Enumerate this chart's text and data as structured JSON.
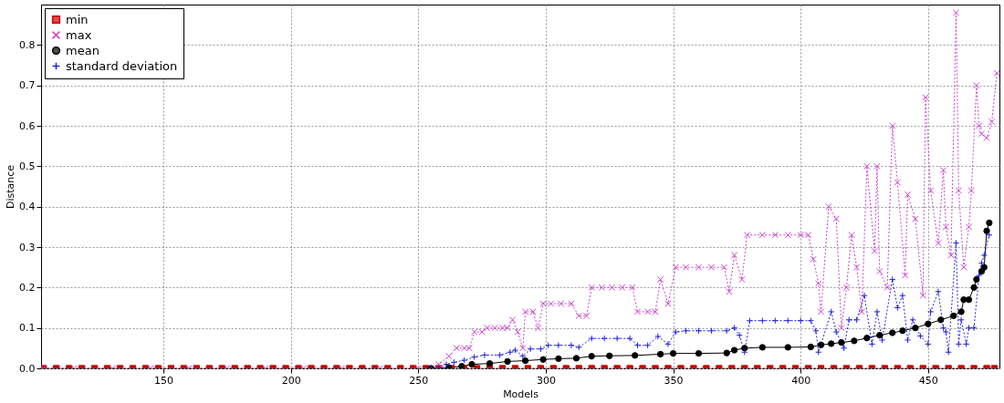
{
  "chart_data": {
    "type": "line",
    "xlabel": "Models",
    "ylabel": "Distance",
    "xlim": [
      102,
      478
    ],
    "xticks": [
      150,
      200,
      250,
      300,
      350,
      400,
      450
    ],
    "ylim": [
      0,
      0.9
    ],
    "yticks": [
      {
        "value": 0,
        "label": "0.0"
      },
      0.1,
      0.2,
      0.3,
      0.4,
      0.5,
      0.6,
      0.7,
      0.8
    ],
    "grid": true,
    "legend": "top left",
    "series": [
      {
        "name": "min",
        "color": "#cc0000",
        "marker": "square",
        "line_style": "dotted",
        "x": [
          103,
          108,
          113,
          118,
          123,
          128,
          133,
          138,
          143,
          148,
          153,
          158,
          163,
          168,
          173,
          178,
          183,
          188,
          193,
          198,
          203,
          208,
          213,
          218,
          223,
          228,
          233,
          238,
          243,
          248,
          253,
          258,
          263,
          268,
          273,
          278,
          283,
          288,
          293,
          298,
          303,
          308,
          313,
          318,
          323,
          328,
          333,
          338,
          343,
          348,
          353,
          358,
          363,
          368,
          373,
          378,
          383,
          388,
          393,
          398,
          403,
          408,
          413,
          418,
          423,
          428,
          433,
          438,
          443,
          448,
          453,
          458,
          463,
          468,
          473,
          476
        ],
        "values": [
          0,
          0,
          0,
          0,
          0,
          0,
          0,
          0,
          0,
          0,
          0,
          0,
          0,
          0,
          0,
          0,
          0,
          0,
          0,
          0,
          0,
          0,
          0,
          0,
          0,
          0,
          0,
          0,
          0,
          0,
          0,
          0,
          0,
          0,
          0,
          0,
          0,
          0,
          0,
          0,
          0,
          0,
          0,
          0,
          0,
          0,
          0,
          0,
          0,
          0,
          0,
          0,
          0,
          0,
          0,
          0,
          0,
          0,
          0,
          0,
          0,
          0,
          0,
          0,
          0,
          0,
          0,
          0,
          0,
          0,
          0,
          0,
          0,
          0,
          0,
          0
        ]
      },
      {
        "name": "max",
        "color": "#cc44cc",
        "marker": "x",
        "line_style": "dotted",
        "x": [
          103,
          115,
          130,
          145,
          160,
          175,
          190,
          205,
          220,
          235,
          250,
          255,
          258,
          262,
          265,
          268,
          270,
          272,
          275,
          277,
          280,
          283,
          285,
          287,
          289,
          291,
          292,
          295,
          297,
          299,
          302,
          306,
          310,
          313,
          316,
          318,
          322,
          326,
          330,
          334,
          336,
          340,
          343,
          345,
          348,
          351,
          355,
          360,
          365,
          370,
          372,
          374,
          377,
          379,
          385,
          390,
          395,
          400,
          403,
          405,
          407,
          408,
          411,
          414,
          416,
          418,
          420,
          422,
          424,
          426,
          429,
          430,
          431,
          434,
          436,
          438,
          441,
          442,
          445,
          448,
          449,
          451,
          454,
          456,
          457,
          459,
          461,
          462,
          464,
          466,
          467,
          469,
          470,
          471,
          473,
          475,
          477
        ],
        "values": [
          0,
          0,
          0,
          0,
          0,
          0,
          0,
          0,
          0,
          0,
          0,
          0,
          0.01,
          0.03,
          0.05,
          0.05,
          0.05,
          0.09,
          0.09,
          0.1,
          0.1,
          0.1,
          0.1,
          0.12,
          0.09,
          0.05,
          0.14,
          0.14,
          0.1,
          0.16,
          0.16,
          0.16,
          0.16,
          0.13,
          0.13,
          0.2,
          0.2,
          0.2,
          0.2,
          0.2,
          0.14,
          0.14,
          0.14,
          0.22,
          0.16,
          0.25,
          0.25,
          0.25,
          0.25,
          0.25,
          0.19,
          0.28,
          0.22,
          0.33,
          0.33,
          0.33,
          0.33,
          0.33,
          0.33,
          0.27,
          0.21,
          0.14,
          0.4,
          0.37,
          0.1,
          0.2,
          0.33,
          0.25,
          0.14,
          0.5,
          0.29,
          0.5,
          0.24,
          0.2,
          0.6,
          0.46,
          0.23,
          0.43,
          0.37,
          0.18,
          0.67,
          0.44,
          0.31,
          0.49,
          0.35,
          0.28,
          0.88,
          0.44,
          0.25,
          0.35,
          0.44,
          0.7,
          0.6,
          0.58,
          0.57,
          0.61,
          0.73
        ]
      },
      {
        "name": "mean",
        "color": "#000000",
        "marker": "circle",
        "line_style": "solid",
        "x": [
          255,
          262,
          267,
          271,
          278,
          285,
          292,
          299,
          305,
          312,
          318,
          325,
          335,
          345,
          350,
          360,
          371,
          374,
          378,
          385,
          395,
          404,
          408,
          412,
          416,
          421,
          426,
          431,
          436,
          440,
          445,
          450,
          455,
          460,
          463,
          464,
          466,
          468,
          469,
          471,
          472,
          473,
          474
        ],
        "values": [
          0,
          0.002,
          0.005,
          0.01,
          0.012,
          0.017,
          0.019,
          0.022,
          0.024,
          0.025,
          0.03,
          0.031,
          0.032,
          0.035,
          0.037,
          0.037,
          0.038,
          0.045,
          0.05,
          0.052,
          0.052,
          0.053,
          0.058,
          0.061,
          0.064,
          0.068,
          0.075,
          0.082,
          0.088,
          0.093,
          0.1,
          0.11,
          0.12,
          0.13,
          0.14,
          0.17,
          0.17,
          0.2,
          0.22,
          0.24,
          0.25,
          0.34,
          0.36
        ]
      },
      {
        "name": "standard deviation",
        "color": "#2222dd",
        "marker": "cross",
        "line_style": "dotted",
        "x": [
          255,
          258,
          261,
          264,
          268,
          272,
          276,
          282,
          286,
          288,
          291,
          294,
          298,
          301,
          305,
          310,
          313,
          318,
          323,
          328,
          333,
          336,
          340,
          344,
          348,
          351,
          355,
          360,
          365,
          371,
          374,
          376,
          378,
          380,
          385,
          390,
          395,
          400,
          404,
          406,
          407,
          412,
          414,
          417,
          419,
          422,
          425,
          428,
          430,
          432,
          436,
          438,
          440,
          442,
          444,
          447,
          450,
          451,
          454,
          456,
          457,
          458,
          461,
          462,
          463,
          465,
          466,
          468,
          470,
          471,
          472,
          474
        ],
        "values": [
          0,
          0,
          0.01,
          0.015,
          0.02,
          0.028,
          0.033,
          0.033,
          0.04,
          0.045,
          0.03,
          0.048,
          0.048,
          0.057,
          0.057,
          0.057,
          0.052,
          0.074,
          0.074,
          0.074,
          0.074,
          0.057,
          0.057,
          0.079,
          0.06,
          0.09,
          0.093,
          0.093,
          0.093,
          0.093,
          0.1,
          0.082,
          0.04,
          0.118,
          0.118,
          0.118,
          0.118,
          0.118,
          0.118,
          0.093,
          0.04,
          0.14,
          0.09,
          0.05,
          0.12,
          0.12,
          0.18,
          0.06,
          0.14,
          0.07,
          0.22,
          0.15,
          0.18,
          0.07,
          0.12,
          0.08,
          0.06,
          0.14,
          0.19,
          0.1,
          0.09,
          0.04,
          0.31,
          0.06,
          0.12,
          0.06,
          0.1,
          0.1,
          0.23,
          0.26,
          0.28,
          0.33
        ]
      }
    ]
  }
}
